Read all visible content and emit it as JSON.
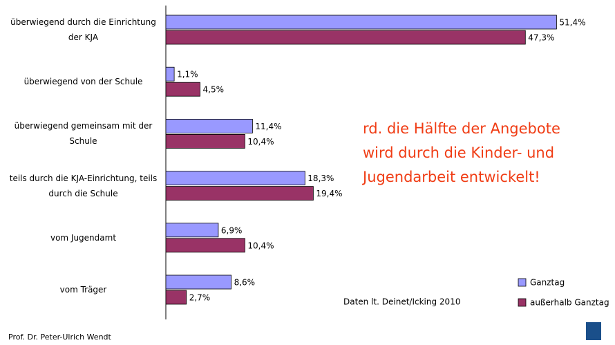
{
  "chart_data": {
    "type": "bar",
    "orientation": "horizontal",
    "categories": [
      "überwiegend durch die Einrichtung der KJA",
      "überwiegend von der Schule",
      "überwiegend gemeinsam mit der Schule",
      "teils durch die KJA-Einrichtung, teils durch die Schule",
      "vom Jugendamt",
      "vom Träger"
    ],
    "series": [
      {
        "name": "Ganztag",
        "color": "#9999ff",
        "values": [
          51.4,
          1.1,
          11.4,
          18.3,
          6.9,
          8.6
        ],
        "value_labels": [
          "51,4%",
          "1,1%",
          "11,4%",
          "18,3%",
          "6,9%",
          "8,6%"
        ]
      },
      {
        "name": "außerhalb Ganztag",
        "color": "#993366",
        "values": [
          47.3,
          4.5,
          10.4,
          19.4,
          10.4,
          2.7
        ],
        "value_labels": [
          "47,3%",
          "4,5%",
          "10,4%",
          "19,4%",
          "10,4%",
          "2,7%"
        ]
      }
    ],
    "xlim": [
      0,
      55
    ],
    "annotation": [
      "rd. die Hälfte der Angebote",
      "wird durch die Kinder- und",
      "Jugendarbeit entwickelt!"
    ],
    "source": "Daten lt. Deinet/Icking 2010",
    "footer": "Prof. Dr. Peter-Ulrich Wendt",
    "legend": "lower right"
  }
}
